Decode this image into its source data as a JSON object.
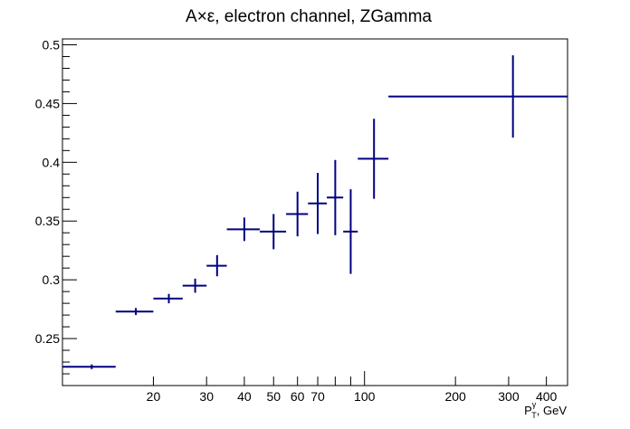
{
  "chart_data": {
    "type": "scatter",
    "title": "A×ε,  electron channel, ZGamma",
    "xlabel": {
      "base": "P",
      "sup": "γ",
      "sub": "T",
      "rest": ", GeV"
    },
    "ylabel": "",
    "x_scale": "log",
    "xlim": [
      10,
      470
    ],
    "ylim": [
      0.21,
      0.505
    ],
    "grid": false,
    "legend": "none",
    "series_color": "#000080",
    "x_tick_labels": [
      {
        "value": 20,
        "label": "20"
      },
      {
        "value": 30,
        "label": "30"
      },
      {
        "value": 40,
        "label": "40"
      },
      {
        "value": 50,
        "label": "50"
      },
      {
        "value": 60,
        "label": "60"
      },
      {
        "value": 70,
        "label": "70"
      },
      {
        "value": 100,
        "label": "100"
      },
      {
        "value": 200,
        "label": "200"
      },
      {
        "value": 300,
        "label": "300"
      },
      {
        "value": 400,
        "label": "400"
      }
    ],
    "y_tick_labels": [
      {
        "value": 0.25,
        "label": "0.25"
      },
      {
        "value": 0.3,
        "label": "0.3"
      },
      {
        "value": 0.35,
        "label": "0.35"
      },
      {
        "value": 0.4,
        "label": "0.4"
      },
      {
        "value": 0.45,
        "label": "0.45"
      },
      {
        "value": 0.5,
        "label": "0.5"
      }
    ],
    "points": [
      {
        "x": 12.5,
        "x_low": 10,
        "x_high": 15,
        "y": 0.226,
        "y_err": 0.002
      },
      {
        "x": 17.5,
        "x_low": 15,
        "x_high": 20,
        "y": 0.273,
        "y_err": 0.003
      },
      {
        "x": 22.5,
        "x_low": 20,
        "x_high": 25,
        "y": 0.284,
        "y_err": 0.004
      },
      {
        "x": 27.5,
        "x_low": 25,
        "x_high": 30,
        "y": 0.295,
        "y_err": 0.006
      },
      {
        "x": 32.5,
        "x_low": 30,
        "x_high": 35,
        "y": 0.312,
        "y_err": 0.009
      },
      {
        "x": 40,
        "x_low": 35,
        "x_high": 45,
        "y": 0.343,
        "y_err": 0.01
      },
      {
        "x": 50,
        "x_low": 45,
        "x_high": 55,
        "y": 0.341,
        "y_err": 0.015
      },
      {
        "x": 60,
        "x_low": 55,
        "x_high": 65,
        "y": 0.356,
        "y_err": 0.019
      },
      {
        "x": 70,
        "x_low": 65,
        "x_high": 75,
        "y": 0.365,
        "y_err": 0.026
      },
      {
        "x": 80,
        "x_low": 75,
        "x_high": 85,
        "y": 0.37,
        "y_err": 0.032
      },
      {
        "x": 90,
        "x_low": 85,
        "x_high": 95,
        "y": 0.341,
        "y_err": 0.036
      },
      {
        "x": 107.5,
        "x_low": 95,
        "x_high": 120,
        "y": 0.403,
        "y_err": 0.034
      },
      {
        "x": 310,
        "x_low": 120,
        "x_high": 470,
        "y": 0.456,
        "y_err": 0.035
      }
    ]
  }
}
